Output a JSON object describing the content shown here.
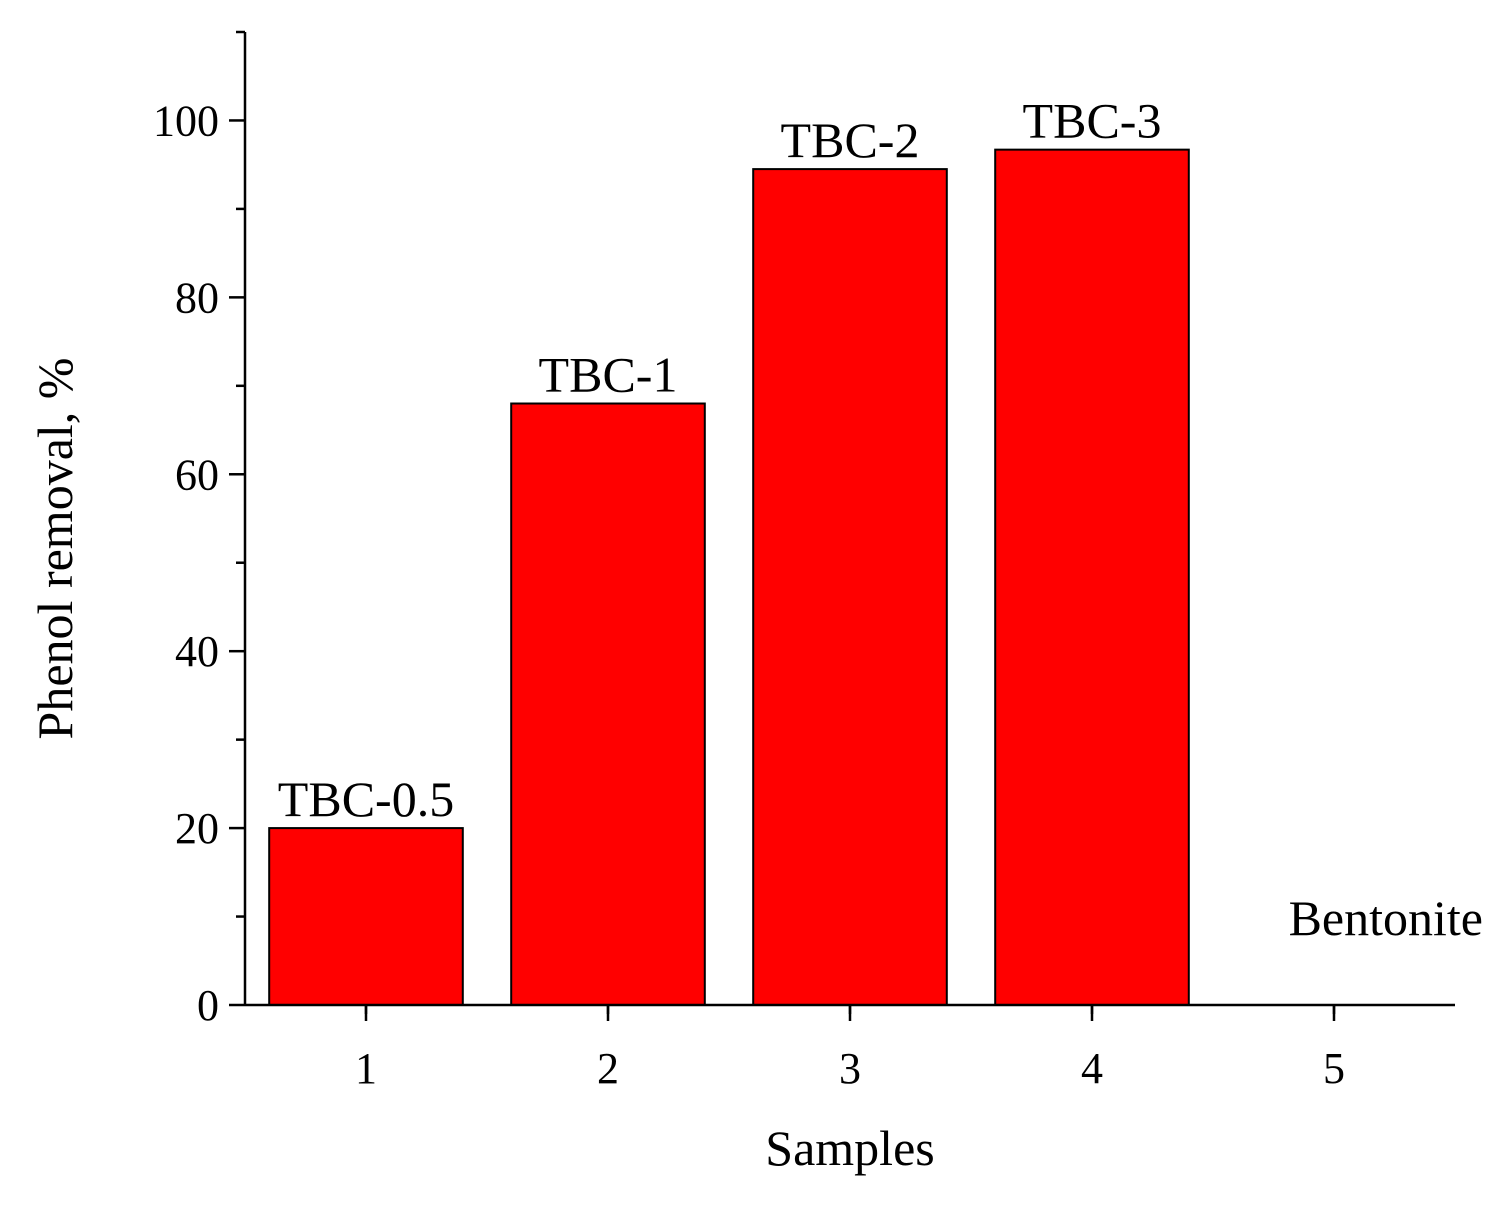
{
  "chart_data": {
    "type": "bar",
    "title": "",
    "xlabel": "Samples",
    "ylabel": "Phenol removal, %",
    "categories": [
      "1",
      "2",
      "3",
      "4",
      "5"
    ],
    "values": [
      20,
      68,
      94.5,
      96.7,
      0
    ],
    "bar_labels": [
      "TBC-0.5",
      "TBC-1",
      "TBC-2",
      "TBC-3",
      "Bentonite"
    ],
    "ylim": [
      0,
      110
    ],
    "yticks": [
      0,
      20,
      40,
      60,
      80,
      100
    ],
    "xlim": [
      0.5,
      5.5
    ],
    "grid": false,
    "legend": "none",
    "bar_color": "#ff0000",
    "bar_edge_color": "#000000"
  }
}
